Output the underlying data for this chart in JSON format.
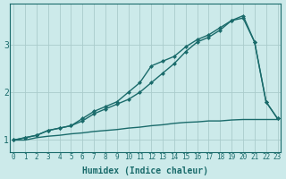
{
  "xlabel": "Humidex (Indice chaleur)",
  "bg_color": "#cceaea",
  "line_color": "#1a6b6b",
  "grid_color": "#aacccc",
  "x_values": [
    0,
    1,
    2,
    3,
    4,
    5,
    6,
    7,
    8,
    9,
    10,
    11,
    12,
    13,
    14,
    15,
    16,
    17,
    18,
    19,
    20,
    21,
    22,
    23
  ],
  "line1": [
    1.0,
    1.05,
    1.1,
    1.2,
    1.25,
    1.3,
    1.4,
    1.55,
    1.65,
    1.75,
    1.85,
    2.0,
    2.2,
    2.4,
    2.6,
    2.85,
    3.05,
    3.15,
    3.3,
    3.5,
    3.6,
    3.05,
    1.8,
    1.45
  ],
  "line2": [
    1.0,
    1.05,
    1.1,
    1.2,
    1.25,
    1.3,
    1.45,
    1.6,
    1.7,
    1.8,
    2.0,
    2.2,
    2.55,
    2.65,
    2.75,
    2.95,
    3.1,
    3.2,
    3.35,
    3.5,
    3.55,
    3.05,
    1.8,
    1.45
  ],
  "line3": [
    1.0,
    1.0,
    1.05,
    1.08,
    1.1,
    1.13,
    1.15,
    1.18,
    1.2,
    1.22,
    1.25,
    1.27,
    1.3,
    1.32,
    1.35,
    1.37,
    1.38,
    1.4,
    1.4,
    1.42,
    1.43,
    1.43,
    1.43,
    1.43
  ],
  "yticks": [
    1,
    2,
    3
  ],
  "xticks": [
    0,
    1,
    2,
    3,
    4,
    5,
    6,
    7,
    8,
    9,
    10,
    11,
    12,
    13,
    14,
    15,
    16,
    17,
    18,
    19,
    20,
    21,
    22,
    23
  ],
  "ylim": [
    0.75,
    3.85
  ],
  "xlim": [
    -0.3,
    23.3
  ],
  "markersize": 2.5,
  "linewidth": 1.0,
  "fontsize_label": 7,
  "fontsize_tick": 5.5
}
